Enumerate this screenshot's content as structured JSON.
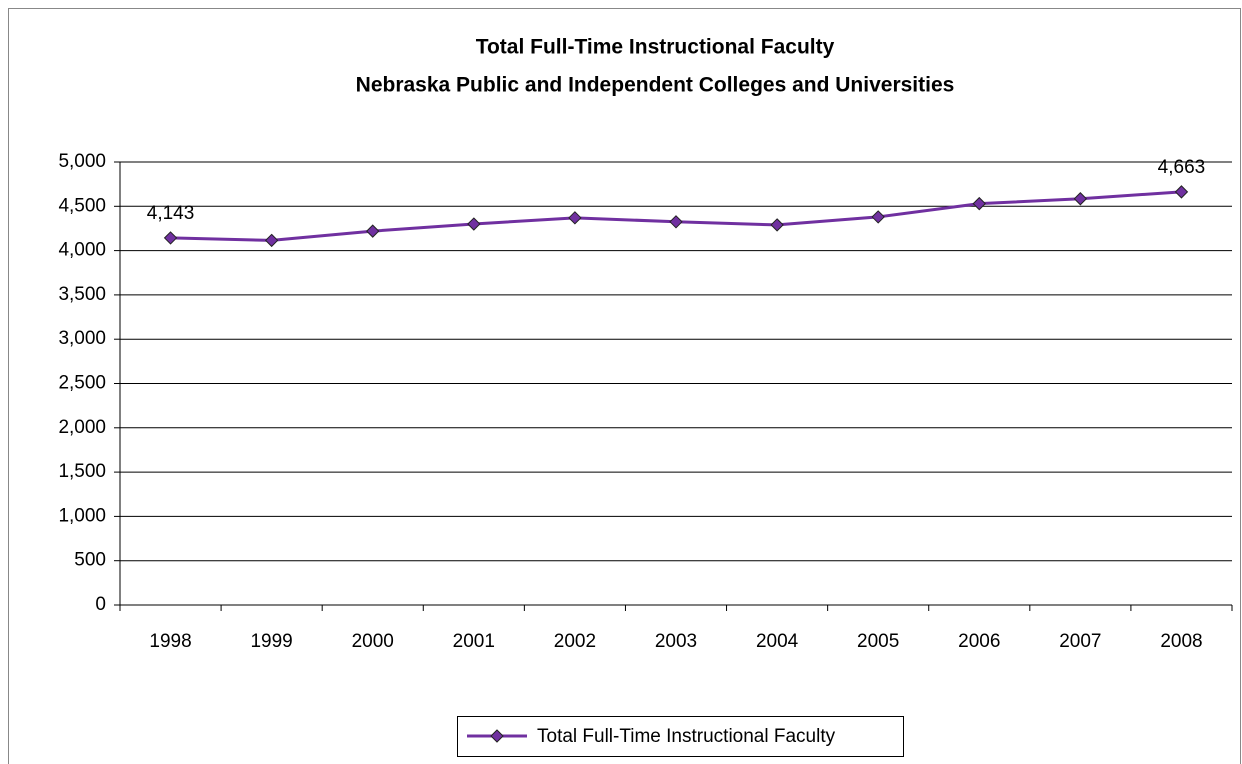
{
  "chart_data": {
    "type": "line",
    "title": "Total Full-Time Instructional Faculty",
    "subtitle": "Nebraska Public and Independent Colleges and Universities",
    "categories": [
      "1998",
      "1999",
      "2000",
      "2001",
      "2002",
      "2003",
      "2004",
      "2005",
      "2006",
      "2007",
      "2008"
    ],
    "series": [
      {
        "name": "Total Full-Time Instructional Faculty",
        "color": "#7030a0",
        "values": [
          4143,
          4115,
          4220,
          4300,
          4370,
          4325,
          4290,
          4380,
          4530,
          4585,
          4663
        ],
        "value_labels": [
          "4,143",
          null,
          null,
          null,
          null,
          null,
          null,
          null,
          null,
          null,
          "4,663"
        ]
      }
    ],
    "ylim": [
      0,
      5000
    ],
    "yticks": [
      0,
      500,
      {
        "value": 1000,
        "label": "1,000"
      },
      {
        "value": 1500,
        "label": "1,500"
      },
      {
        "value": 2000,
        "label": "2,000"
      },
      {
        "value": 2500,
        "label": "2,500"
      },
      {
        "value": 3000,
        "label": "3,000"
      },
      {
        "value": 3500,
        "label": "3,500"
      },
      {
        "value": 4000,
        "label": "4,000"
      },
      {
        "value": 4500,
        "label": "4,500"
      },
      {
        "value": 5000,
        "label": "5,000"
      }
    ],
    "grid": true,
    "legend": "bottom"
  }
}
